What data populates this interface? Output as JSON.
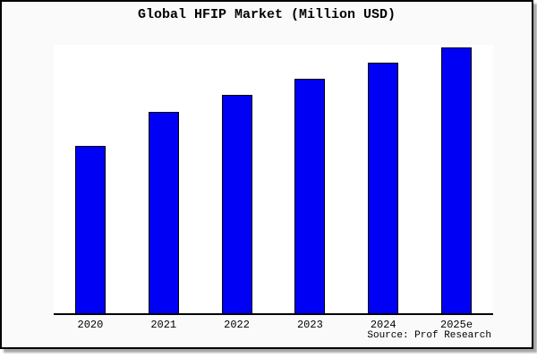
{
  "card": {
    "background": "#fafafa",
    "border_color": "#000000",
    "shadow_color": "#a8a8a8"
  },
  "header": {
    "title": "Global HFIP Market (Million USD)"
  },
  "footer": {
    "source": "Source: Prof Research"
  },
  "chart_data": {
    "type": "bar",
    "title": "Global HFIP Market (Million USD)",
    "categories": [
      "2020",
      "2021",
      "2022",
      "2023",
      "2024",
      "2025e"
    ],
    "values": [
      62.5,
      75,
      81.5,
      87.5,
      93.5,
      99
    ],
    "values_note": "relative bar heights in % of plot height; chart shows no y-axis ticks, labels or gridlines",
    "xlabel": "",
    "ylabel": "",
    "ylim": [
      0,
      100
    ],
    "grid": false,
    "legend": false,
    "plot_background": "#ffffff",
    "bar_color": "#0000f5",
    "bar_border_color": "#000000",
    "axis_line_color": "#000000",
    "source_note": "Source: Prof Research"
  }
}
